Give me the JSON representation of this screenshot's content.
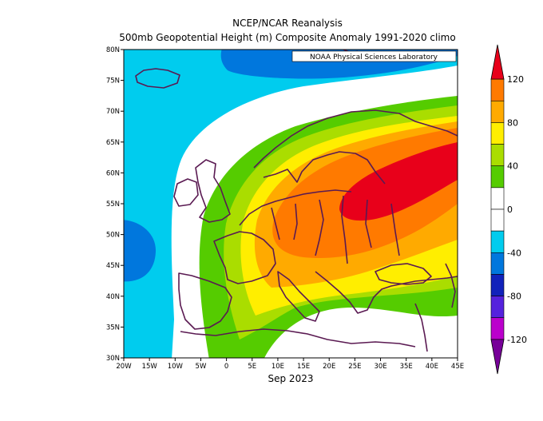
{
  "title_line1": "NCEP/NCAR Reanalysis",
  "title_line2": "500mb Geopotential Height (m) Composite Anomaly 1991-2020 climo",
  "credit": "NOAA Physical Sciences Laboratory",
  "period_label": "Sep 2023",
  "map": {
    "lon_range": [
      -20,
      45
    ],
    "lat_range": [
      30,
      80
    ],
    "lat_ticks": [
      {
        "v": 80,
        "label": "80N"
      },
      {
        "v": 75,
        "label": "75N"
      },
      {
        "v": 70,
        "label": "70N"
      },
      {
        "v": 65,
        "label": "65N"
      },
      {
        "v": 60,
        "label": "60N"
      },
      {
        "v": 55,
        "label": "55N"
      },
      {
        "v": 50,
        "label": "50N"
      },
      {
        "v": 45,
        "label": "45N"
      },
      {
        "v": 40,
        "label": "40N"
      },
      {
        "v": 35,
        "label": "35N"
      },
      {
        "v": 30,
        "label": "30N"
      }
    ],
    "lon_ticks": [
      {
        "v": -20,
        "label": "20W"
      },
      {
        "v": -15,
        "label": "15W"
      },
      {
        "v": -10,
        "label": "10W"
      },
      {
        "v": -5,
        "label": "5W"
      },
      {
        "v": 0,
        "label": "0"
      },
      {
        "v": 5,
        "label": "5E"
      },
      {
        "v": 10,
        "label": "10E"
      },
      {
        "v": 15,
        "label": "15E"
      },
      {
        "v": 20,
        "label": "20E"
      },
      {
        "v": 25,
        "label": "25E"
      },
      {
        "v": 30,
        "label": "30E"
      },
      {
        "v": 35,
        "label": "35E"
      },
      {
        "v": 40,
        "label": "40E"
      },
      {
        "v": 45,
        "label": "45E"
      }
    ],
    "anomaly_center_max": {
      "lon": 27,
      "lat": 55
    },
    "anomaly_center_min": {
      "lon": -20,
      "lat": 50
    }
  },
  "colorbar": {
    "labels": [
      "120",
      "80",
      "40",
      "0",
      "-40",
      "-80",
      "-120"
    ],
    "colors": [
      "#e8001a",
      "#ff7a00",
      "#ffaa00",
      "#ffee00",
      "#aadd00",
      "#55cc00",
      "#ffffff",
      "#ffffff",
      "#00ccee",
      "#0077dd",
      "#1122bb",
      "#5522dd",
      "#bb00cc",
      "#770099"
    ]
  }
}
